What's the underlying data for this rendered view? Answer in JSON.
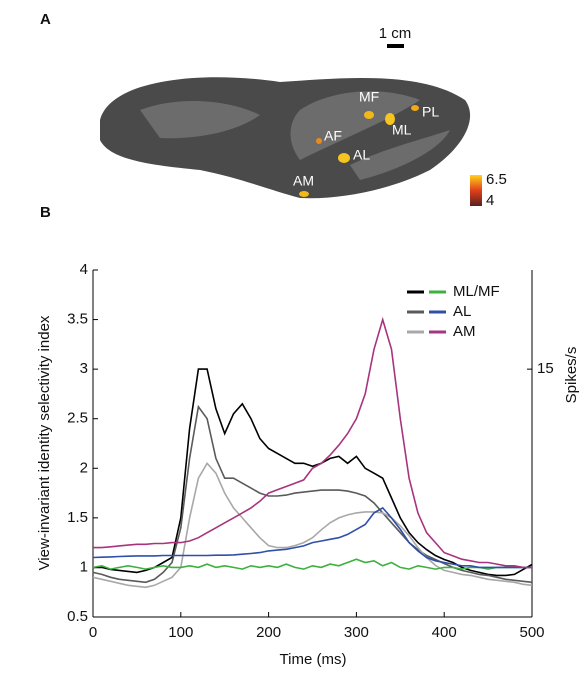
{
  "panel_a": {
    "panel_label": "A",
    "scale_label": "1 cm",
    "regions": [
      "MF",
      "PL",
      "ML",
      "AF",
      "AL",
      "AM"
    ],
    "colorbar": {
      "max": 6.5,
      "min": 4
    }
  },
  "chart_data": {
    "type": "line",
    "panel_label": "B",
    "xlabel": "Time (ms)",
    "ylabel": "View-invariant identity selectivity index",
    "y2label": "Spikes/s",
    "xlim": [
      0,
      500
    ],
    "xticks": [
      0,
      100,
      200,
      300,
      400,
      500
    ],
    "ylim": [
      0.5,
      4
    ],
    "yticks": [
      0.5,
      1,
      1.5,
      2,
      2.5,
      3,
      3.5,
      4
    ],
    "y2lim": [
      0,
      21
    ],
    "y2ticks": [
      15
    ],
    "legend": "upper right",
    "x": [
      0,
      10,
      20,
      30,
      40,
      50,
      60,
      70,
      80,
      90,
      100,
      110,
      120,
      130,
      140,
      150,
      160,
      170,
      180,
      190,
      200,
      210,
      220,
      230,
      240,
      250,
      260,
      270,
      280,
      290,
      300,
      310,
      320,
      330,
      340,
      350,
      360,
      370,
      380,
      390,
      400,
      410,
      420,
      430,
      440,
      450,
      460,
      470,
      480,
      490,
      500
    ],
    "series": [
      {
        "name": "ML/MF",
        "color": "#000000",
        "values": [
          1.0,
          1.0,
          0.98,
          0.97,
          0.96,
          0.95,
          0.97,
          1.0,
          1.05,
          1.1,
          1.5,
          2.4,
          3.0,
          3.0,
          2.6,
          2.35,
          2.55,
          2.65,
          2.5,
          2.3,
          2.2,
          2.15,
          2.1,
          2.05,
          2.05,
          2.02,
          2.05,
          2.1,
          2.12,
          2.05,
          2.12,
          2.0,
          1.95,
          1.9,
          1.7,
          1.5,
          1.35,
          1.25,
          1.18,
          1.12,
          1.08,
          1.05,
          1.0,
          0.97,
          0.95,
          0.93,
          0.92,
          0.92,
          0.93,
          0.98,
          1.03
        ]
      },
      {
        "name": "AL",
        "color": "#5a5a5a",
        "values": [
          0.95,
          0.93,
          0.9,
          0.88,
          0.87,
          0.86,
          0.85,
          0.88,
          0.95,
          1.05,
          1.4,
          2.1,
          2.62,
          2.5,
          2.1,
          1.9,
          1.9,
          1.85,
          1.8,
          1.75,
          1.72,
          1.72,
          1.73,
          1.75,
          1.76,
          1.77,
          1.78,
          1.78,
          1.78,
          1.77,
          1.75,
          1.72,
          1.65,
          1.55,
          1.45,
          1.35,
          1.25,
          1.18,
          1.12,
          1.08,
          1.04,
          1.0,
          0.97,
          0.95,
          0.93,
          0.92,
          0.9,
          0.88,
          0.87,
          0.86,
          0.85
        ]
      },
      {
        "name": "AM",
        "color": "#a8a8a8",
        "values": [
          0.9,
          0.88,
          0.86,
          0.84,
          0.82,
          0.81,
          0.8,
          0.82,
          0.86,
          0.9,
          1.0,
          1.5,
          1.9,
          2.05,
          1.95,
          1.75,
          1.6,
          1.5,
          1.4,
          1.3,
          1.22,
          1.2,
          1.2,
          1.22,
          1.25,
          1.3,
          1.38,
          1.45,
          1.5,
          1.53,
          1.55,
          1.56,
          1.56,
          1.55,
          1.5,
          1.42,
          1.32,
          1.2,
          1.1,
          1.02,
          0.97,
          0.95,
          0.93,
          0.92,
          0.9,
          0.88,
          0.87,
          0.86,
          0.85,
          0.83,
          0.82
        ]
      },
      {
        "name": "ML/MF",
        "color": "#3db03d",
        "axis": "y2",
        "values": [
          3.0,
          3.1,
          2.9,
          3.0,
          3.1,
          3.0,
          2.9,
          3.0,
          3.1,
          3.0,
          3.0,
          3.1,
          3.0,
          3.2,
          3.0,
          3.1,
          3.0,
          2.9,
          3.1,
          3.0,
          3.1,
          3.0,
          3.2,
          3.0,
          2.9,
          3.1,
          3.0,
          3.2,
          3.1,
          3.3,
          3.5,
          3.3,
          3.4,
          3.1,
          3.3,
          3.0,
          2.9,
          3.1,
          3.0,
          2.9,
          3.0,
          3.0,
          2.9,
          3.0,
          3.0,
          2.9,
          3.0,
          3.0,
          3.0,
          3.0,
          3.0
        ]
      },
      {
        "name": "AL",
        "color": "#2f4fa8",
        "axis": "y2",
        "values": [
          3.6,
          3.62,
          3.64,
          3.66,
          3.68,
          3.7,
          3.7,
          3.7,
          3.72,
          3.72,
          3.72,
          3.72,
          3.72,
          3.72,
          3.74,
          3.74,
          3.76,
          3.8,
          3.84,
          3.9,
          4.0,
          4.05,
          4.1,
          4.2,
          4.3,
          4.5,
          4.6,
          4.7,
          4.8,
          5.0,
          5.3,
          5.6,
          6.3,
          6.6,
          6.0,
          5.3,
          4.5,
          4.0,
          3.6,
          3.4,
          3.3,
          3.2,
          3.1,
          3.1,
          3.0,
          3.0,
          3.0,
          3.0,
          3.0,
          3.0,
          3.0
        ]
      },
      {
        "name": "AM",
        "color": "#a8337e",
        "axis": "y2",
        "values": [
          4.2,
          4.2,
          4.25,
          4.3,
          4.35,
          4.4,
          4.4,
          4.45,
          4.45,
          4.5,
          4.5,
          4.6,
          4.8,
          5.1,
          5.4,
          5.7,
          6.0,
          6.3,
          6.6,
          7.0,
          7.5,
          7.7,
          7.9,
          8.1,
          8.3,
          9.0,
          9.3,
          9.8,
          10.4,
          11.1,
          12.0,
          13.5,
          16.2,
          18.0,
          16.2,
          12.0,
          8.4,
          6.3,
          5.1,
          4.5,
          3.9,
          3.7,
          3.5,
          3.4,
          3.3,
          3.3,
          3.2,
          3.1,
          3.1,
          3.0,
          3.0
        ]
      }
    ]
  }
}
